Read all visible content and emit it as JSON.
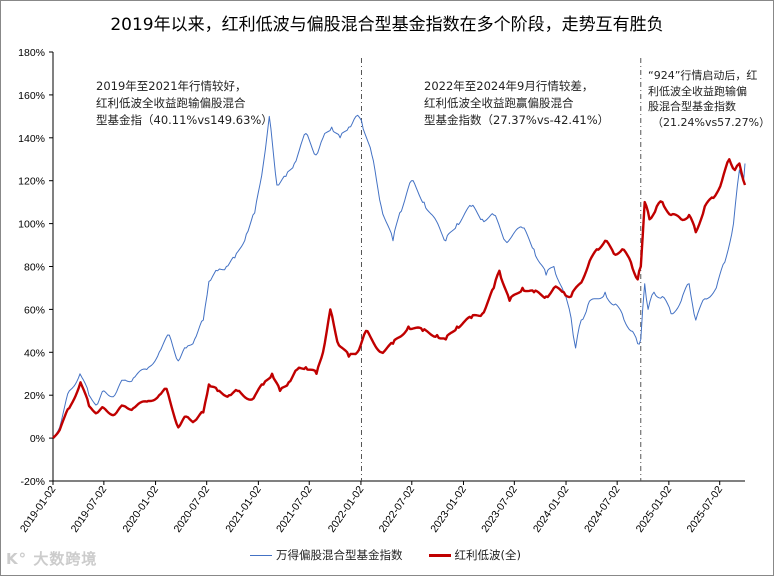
{
  "chart_data": {
    "type": "line",
    "title": "2019年以来，红利低波与偏股混合型基金指数在多个阶段，走势互有胜负",
    "ylim": [
      -20,
      180
    ],
    "yticks": [
      "-20%",
      "0%",
      "20%",
      "40%",
      "60%",
      "80%",
      "100%",
      "120%",
      "140%",
      "160%",
      "180%"
    ],
    "ytick_values": [
      -20,
      0,
      20,
      40,
      60,
      80,
      100,
      120,
      140,
      160,
      180
    ],
    "xlim": [
      "2019-01-02",
      "2025-09-30"
    ],
    "xticks": [
      "2019-01-02",
      "2019-07-02",
      "2020-01-02",
      "2020-07-02",
      "2021-01-02",
      "2021-07-02",
      "2022-01-02",
      "2022-07-02",
      "2023-01-02",
      "2023-07-02",
      "2024-01-02",
      "2024-07-02",
      "2025-01-02",
      "2025-07-02"
    ],
    "grid": false,
    "legend_placement": "bottom",
    "vlines": [
      "2022-01-04",
      "2024-09-24"
    ],
    "annotations": [
      [
        "2019年至2021年行情较好，",
        "红利低波全收益跑输偏股混合",
        "型基金指（40.11%vs149.63%）"
      ],
      [
        "2022年至2024年9月行情较差，",
        "红利低波全收益跑赢偏股混合",
        "型基金指数（27.37%vs-42.41%）"
      ],
      [
        "“924”行情启动后，红",
        "利低波全收益跑输偏",
        "股混合型基金指数",
        "（21.24%vs57.27%）"
      ]
    ],
    "series": [
      {
        "name": "万得偏股混合型基金指数",
        "color": "#4472c4",
        "points": [
          [
            "2019-01-02",
            0
          ],
          [
            "2019-02-01",
            8
          ],
          [
            "2019-03-01",
            22
          ],
          [
            "2019-04-08",
            30
          ],
          [
            "2019-05-10",
            20
          ],
          [
            "2019-06-10",
            16
          ],
          [
            "2019-07-02",
            22
          ],
          [
            "2019-08-10",
            20
          ],
          [
            "2019-09-10",
            27
          ],
          [
            "2019-10-15",
            28
          ],
          [
            "2019-12-02",
            32
          ],
          [
            "2020-01-15",
            40
          ],
          [
            "2020-02-20",
            48
          ],
          [
            "2020-03-23",
            36
          ],
          [
            "2020-04-20",
            42
          ],
          [
            "2020-05-20",
            46
          ],
          [
            "2020-06-20",
            55
          ],
          [
            "2020-07-10",
            73
          ],
          [
            "2020-08-10",
            78
          ],
          [
            "2020-09-10",
            80
          ],
          [
            "2020-10-10",
            84
          ],
          [
            "2020-11-20",
            95
          ],
          [
            "2020-12-20",
            105
          ],
          [
            "2021-01-20",
            128
          ],
          [
            "2021-02-10",
            150
          ],
          [
            "2021-03-09",
            118
          ],
          [
            "2021-04-10",
            122
          ],
          [
            "2021-05-10",
            128
          ],
          [
            "2021-06-20",
            142
          ],
          [
            "2021-07-26",
            132
          ],
          [
            "2021-08-20",
            140
          ],
          [
            "2021-09-20",
            145
          ],
          [
            "2021-10-20",
            140
          ],
          [
            "2021-11-20",
            145
          ],
          [
            "2021-12-15",
            150
          ],
          [
            "2022-01-04",
            148
          ],
          [
            "2022-02-10",
            132
          ],
          [
            "2022-03-15",
            108
          ],
          [
            "2022-04-26",
            92
          ],
          [
            "2022-05-20",
            105
          ],
          [
            "2022-07-01",
            120
          ],
          [
            "2022-08-15",
            110
          ],
          [
            "2022-10-31",
            92
          ],
          [
            "2022-12-10",
            100
          ],
          [
            "2023-01-30",
            108
          ],
          [
            "2023-03-10",
            102
          ],
          [
            "2023-04-20",
            104
          ],
          [
            "2023-05-31",
            92
          ],
          [
            "2023-07-31",
            98
          ],
          [
            "2023-09-10",
            88
          ],
          [
            "2023-10-23",
            76
          ],
          [
            "2023-11-20",
            80
          ],
          [
            "2023-12-25",
            68
          ],
          [
            "2024-01-20",
            56
          ],
          [
            "2024-02-05",
            42
          ],
          [
            "2024-02-25",
            55
          ],
          [
            "2024-03-20",
            62
          ],
          [
            "2024-05-20",
            68
          ],
          [
            "2024-06-20",
            62
          ],
          [
            "2024-07-20",
            58
          ],
          [
            "2024-08-20",
            50
          ],
          [
            "2024-09-13",
            44
          ],
          [
            "2024-09-24",
            46
          ],
          [
            "2024-10-08",
            72
          ],
          [
            "2024-10-20",
            60
          ],
          [
            "2024-11-10",
            68
          ],
          [
            "2024-12-10",
            66
          ],
          [
            "2025-01-10",
            58
          ],
          [
            "2025-02-15",
            64
          ],
          [
            "2025-03-15",
            72
          ],
          [
            "2025-04-08",
            55
          ],
          [
            "2025-05-10",
            65
          ],
          [
            "2025-06-20",
            70
          ],
          [
            "2025-07-20",
            82
          ],
          [
            "2025-08-20",
            100
          ],
          [
            "2025-09-10",
            125
          ],
          [
            "2025-09-25",
            120
          ],
          [
            "2025-09-30",
            128
          ]
        ]
      },
      {
        "name": "红利低波(全)",
        "color": "#c00000",
        "points": [
          [
            "2019-01-02",
            0
          ],
          [
            "2019-02-01",
            6
          ],
          [
            "2019-03-01",
            14
          ],
          [
            "2019-04-10",
            26
          ],
          [
            "2019-05-10",
            15
          ],
          [
            "2019-06-10",
            12
          ],
          [
            "2019-07-02",
            14
          ],
          [
            "2019-08-10",
            11
          ],
          [
            "2019-09-10",
            15
          ],
          [
            "2019-10-15",
            14
          ],
          [
            "2019-12-02",
            17
          ],
          [
            "2020-01-15",
            20
          ],
          [
            "2020-02-10",
            23
          ],
          [
            "2020-03-23",
            5
          ],
          [
            "2020-04-20",
            10
          ],
          [
            "2020-05-20",
            8
          ],
          [
            "2020-06-20",
            12
          ],
          [
            "2020-07-10",
            25
          ],
          [
            "2020-08-10",
            22
          ],
          [
            "2020-09-20",
            20
          ],
          [
            "2020-10-20",
            22
          ],
          [
            "2020-12-10",
            18
          ],
          [
            "2021-01-20",
            25
          ],
          [
            "2021-02-20",
            30
          ],
          [
            "2021-03-20",
            22
          ],
          [
            "2021-04-20",
            26
          ],
          [
            "2021-05-20",
            32
          ],
          [
            "2021-06-20",
            33
          ],
          [
            "2021-07-28",
            30
          ],
          [
            "2021-08-20",
            40
          ],
          [
            "2021-09-15",
            60
          ],
          [
            "2021-10-10",
            45
          ],
          [
            "2021-11-20",
            38
          ],
          [
            "2021-12-20",
            40
          ],
          [
            "2022-01-20",
            50
          ],
          [
            "2022-03-15",
            40
          ],
          [
            "2022-04-26",
            44
          ],
          [
            "2022-06-20",
            52
          ],
          [
            "2022-08-10",
            50
          ],
          [
            "2022-09-30",
            48
          ],
          [
            "2022-10-31",
            46
          ],
          [
            "2022-12-10",
            52
          ],
          [
            "2023-01-30",
            56
          ],
          [
            "2023-03-10",
            58
          ],
          [
            "2023-04-20",
            70
          ],
          [
            "2023-05-10",
            78
          ],
          [
            "2023-06-15",
            64
          ],
          [
            "2023-07-31",
            70
          ],
          [
            "2023-09-10",
            68
          ],
          [
            "2023-10-23",
            66
          ],
          [
            "2023-11-20",
            70
          ],
          [
            "2023-12-25",
            68
          ],
          [
            "2024-01-20",
            66
          ],
          [
            "2024-02-20",
            72
          ],
          [
            "2024-03-20",
            80
          ],
          [
            "2024-04-20",
            88
          ],
          [
            "2024-05-20",
            92
          ],
          [
            "2024-06-20",
            86
          ],
          [
            "2024-07-20",
            88
          ],
          [
            "2024-08-20",
            82
          ],
          [
            "2024-09-13",
            74
          ],
          [
            "2024-09-24",
            80
          ],
          [
            "2024-10-08",
            110
          ],
          [
            "2024-10-25",
            102
          ],
          [
            "2024-11-20",
            108
          ],
          [
            "2024-12-10",
            110
          ],
          [
            "2025-01-10",
            104
          ],
          [
            "2025-02-15",
            102
          ],
          [
            "2025-03-15",
            104
          ],
          [
            "2025-04-08",
            96
          ],
          [
            "2025-05-10",
            108
          ],
          [
            "2025-06-10",
            112
          ],
          [
            "2025-07-10",
            120
          ],
          [
            "2025-08-05",
            130
          ],
          [
            "2025-08-25",
            125
          ],
          [
            "2025-09-10",
            128
          ],
          [
            "2025-09-30",
            118
          ]
        ]
      }
    ]
  },
  "watermark": "大数跨境"
}
